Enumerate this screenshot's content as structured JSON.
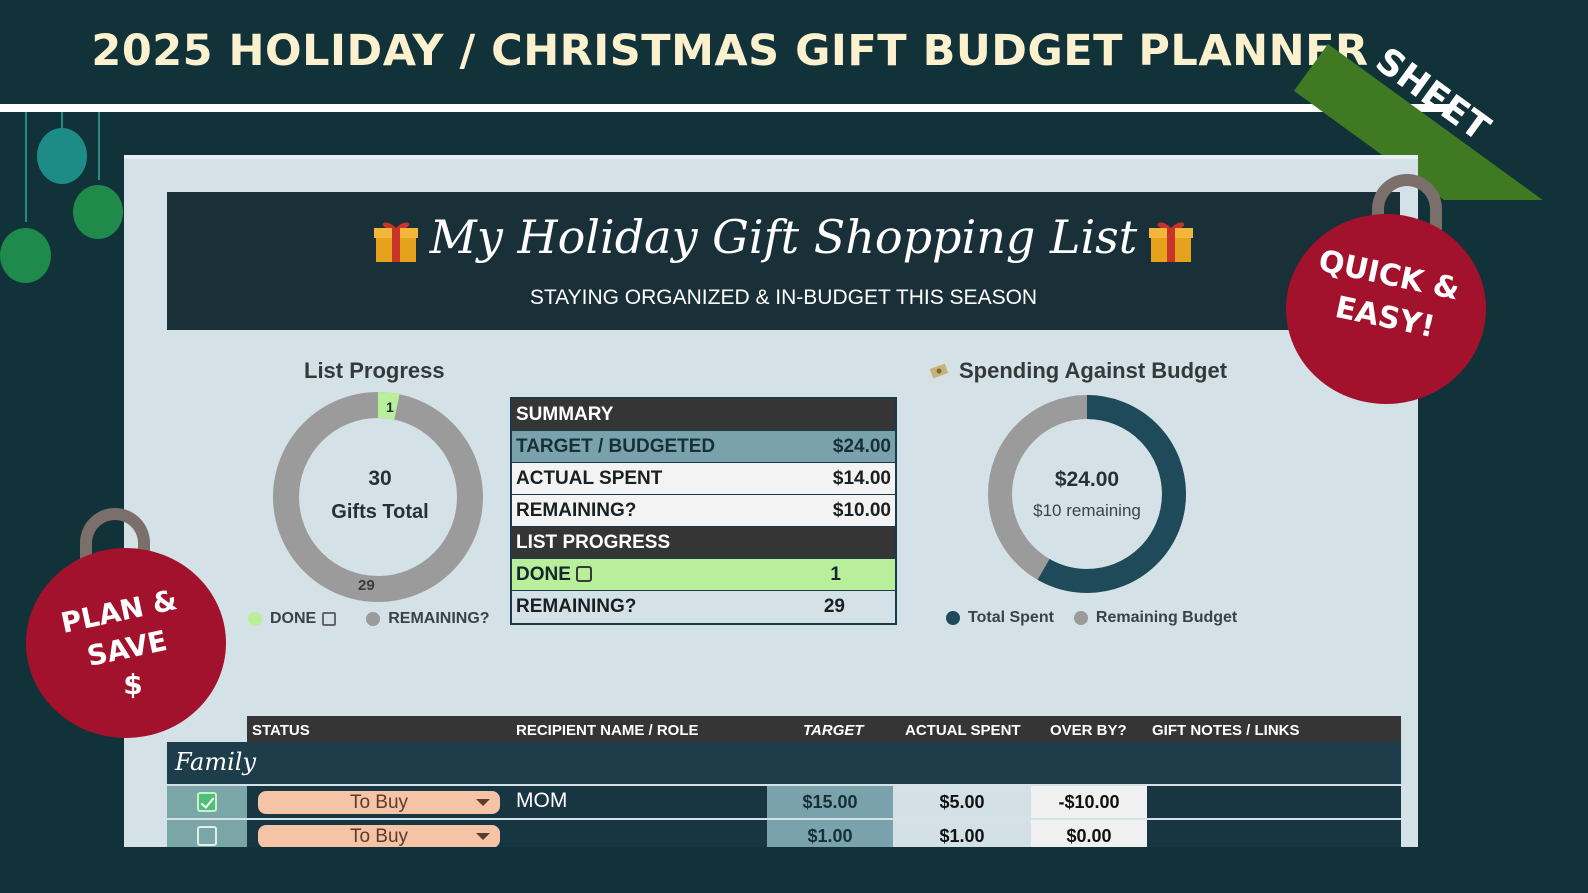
{
  "header": {
    "title": "2025 HOLIDAY / CHRISTMAS GIFT BUDGET PLANNER"
  },
  "ribbon": {
    "label": "SHEET"
  },
  "badges": {
    "right": {
      "line1": "QUICK &",
      "line2": "EASY!"
    },
    "left": {
      "line1": "PLAN &",
      "line2": "SAVE",
      "line3": "$"
    }
  },
  "banner": {
    "title": "My Holiday Gift Shopping List",
    "subtitle": "STAYING ORGANIZED & IN-BUDGET THIS SEASON"
  },
  "list_progress": {
    "heading": "List Progress",
    "center_number": "30",
    "center_label": "Gifts Total",
    "done_label": "1",
    "remaining_label": "29",
    "done_fraction": 0.033,
    "legend": {
      "done": "DONE",
      "remaining": "REMAINING?"
    }
  },
  "spending": {
    "heading": "Spending Against Budget",
    "center_amount": "$24.00",
    "center_label": "$10 remaining",
    "spent_fraction": 0.583,
    "legend": {
      "spent": "Total Spent",
      "remaining": "Remaining Budget"
    }
  },
  "summary": {
    "heading": "SUMMARY",
    "rows": [
      {
        "label": "TARGET / BUDGETED",
        "value": "$24.00"
      },
      {
        "label": "ACTUAL SPENT",
        "value": "$14.00"
      },
      {
        "label": "REMAINING?",
        "value": "$10.00"
      }
    ],
    "progress_heading": "LIST PROGRESS",
    "progress_rows": [
      {
        "label": "DONE",
        "value": "1"
      },
      {
        "label": "REMAINING?",
        "value": "29"
      }
    ]
  },
  "table": {
    "columns": [
      "STATUS",
      "RECIPIENT NAME / ROLE",
      "TARGET",
      "ACTUAL SPENT",
      "OVER BY?",
      "GIFT NOTES / LINKS"
    ],
    "group": "Family",
    "rows": [
      {
        "status": "To Buy",
        "recipient": "MOM",
        "target": "$15.00",
        "actual": "$5.00",
        "over": "-$10.00"
      },
      {
        "status": "To Buy",
        "recipient": "",
        "target": "$1.00",
        "actual": "$1.00",
        "over": "$0.00"
      }
    ]
  },
  "colors": {
    "background": "#113238",
    "title": "#fbf1cf",
    "ribbon": "#3f7a23",
    "badge": "#a3122d",
    "done": "#b9ee9a",
    "spent": "#1f4a5a",
    "remaining": "#9b9b9b"
  }
}
